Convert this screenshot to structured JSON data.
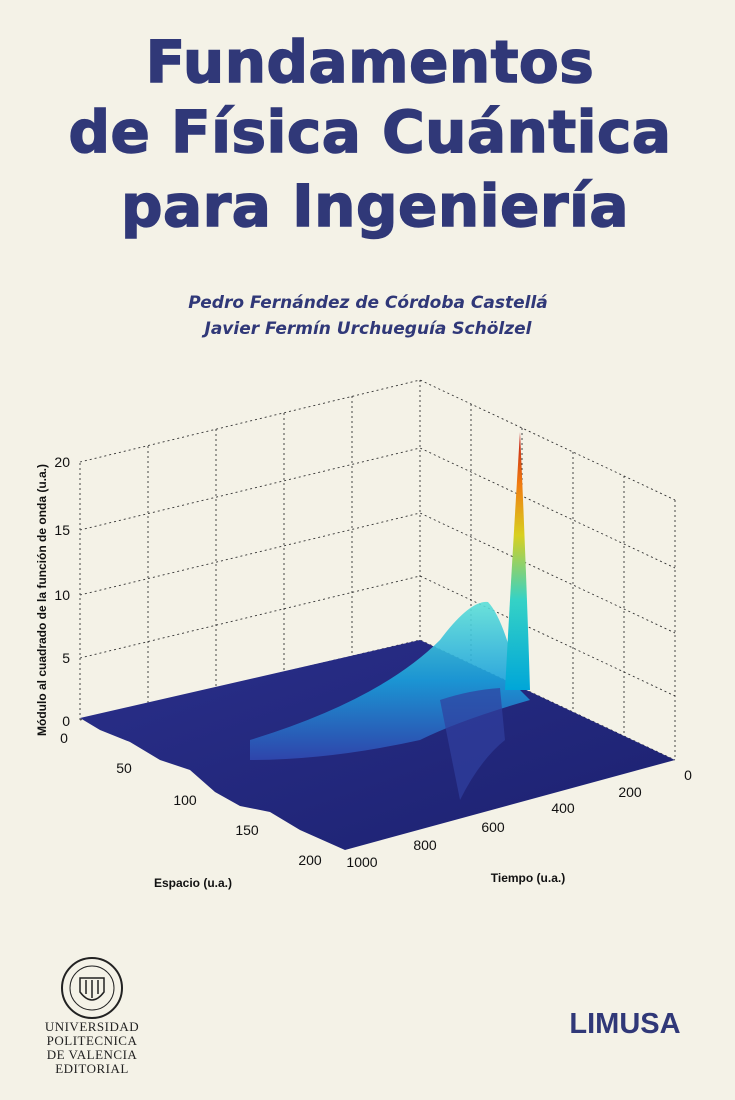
{
  "title": {
    "lines": [
      "Fundamentos",
      "de Física Cuántica",
      "para Ingeniería"
    ]
  },
  "authors": [
    "Pedro Fernández de Córdoba Castellá",
    "Javier Fermín Urchueguía Schölzel"
  ],
  "figure": {
    "z_axis_label": "Módulo al cuadrado de la función de onda (u.a.)",
    "x_axis_label": "Espacio (u.a.)",
    "y_axis_label": "Tiempo (u.a.)",
    "z_ticks": [
      20,
      15,
      10,
      5,
      0
    ],
    "x_ticks": [
      0,
      50,
      100,
      150,
      200
    ],
    "y_ticks": [
      0,
      200,
      400,
      600,
      800,
      1000
    ]
  },
  "publisher": {
    "university": [
      "UNIVERSIDAD",
      "POLITECNICA",
      "DE VALENCIA"
    ],
    "imprint": "EDITORIAL",
    "name": "LIMUSA"
  }
}
